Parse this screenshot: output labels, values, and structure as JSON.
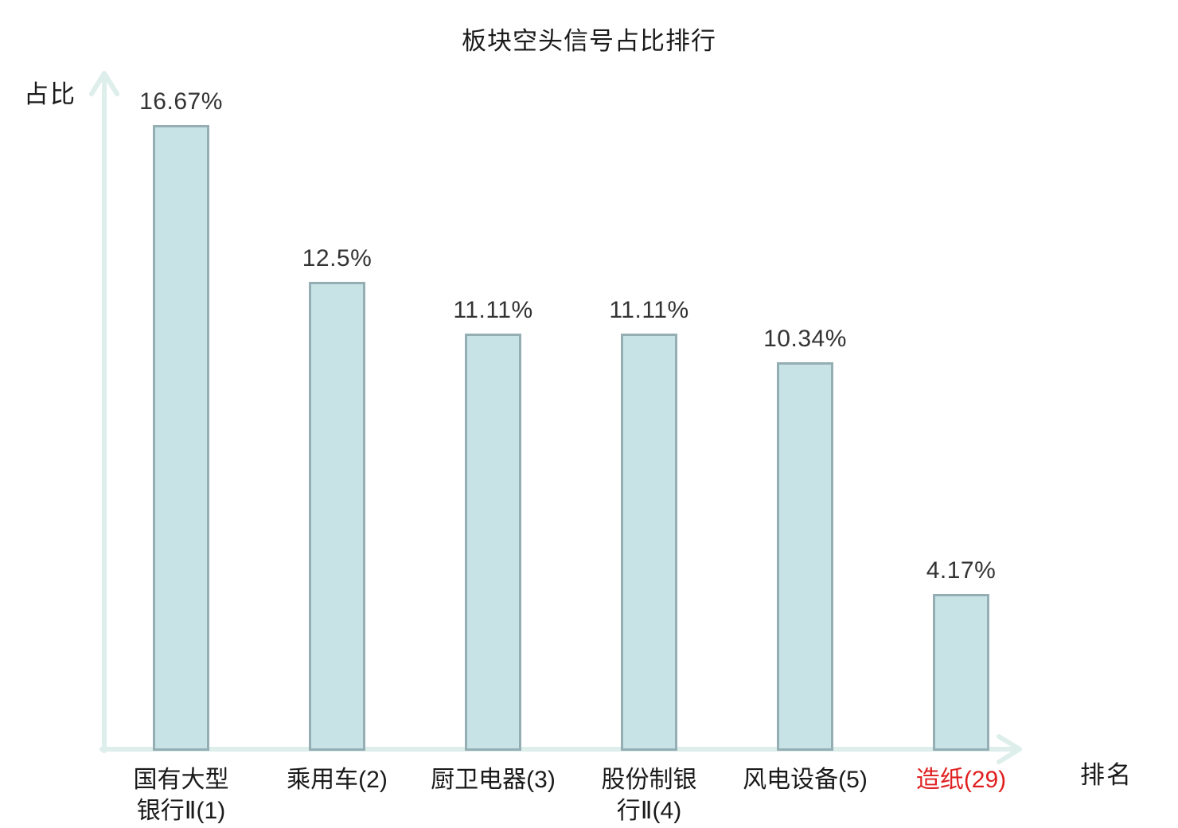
{
  "chart_data": {
    "type": "bar",
    "title": "板块空头信号占比排行",
    "xlabel": "排名",
    "ylabel": "占比",
    "categories": [
      "国有大型银行Ⅱ(1)",
      "乘用车(2)",
      "厨卫电器(3)",
      "股份制银行Ⅱ(4)",
      "风电设备(5)",
      "造纸(29)"
    ],
    "category_label_lines": [
      [
        "国有大型",
        "银行Ⅱ(1)"
      ],
      [
        "乘用车(2)"
      ],
      [
        "厨卫电器(3)"
      ],
      [
        "股份制银",
        "行Ⅱ(4)"
      ],
      [
        "风电设备(5)"
      ],
      [
        "造纸(29)"
      ]
    ],
    "values": [
      16.67,
      12.5,
      11.11,
      11.11,
      10.34,
      4.17
    ],
    "value_labels": [
      "16.67%",
      "12.5%",
      "11.11%",
      "11.11%",
      "10.34%",
      "4.17%"
    ],
    "highlighted_category_index": 5,
    "ylim": [
      0,
      17.6
    ],
    "grid": false,
    "legend": null,
    "colors": {
      "bar_fill": "#c7e3e5",
      "bar_border": "#94aeb4",
      "axis": "#ddeeeb",
      "value_label": "#333333",
      "category_label": "#1a1a1a",
      "highlight_label": "#e02020",
      "title": "#1a1a1a"
    }
  }
}
